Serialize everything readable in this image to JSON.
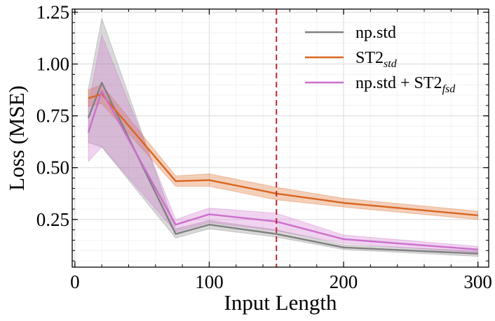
{
  "chart_data": {
    "type": "line",
    "title": "",
    "xlabel": "Input Length",
    "ylabel": "Loss (MSE)",
    "xlim": [
      -2,
      308
    ],
    "ylim": [
      0.02,
      1.265
    ],
    "xticks": [
      0,
      100,
      200,
      300
    ],
    "xtick_labels": [
      "0",
      "100",
      "200",
      "300"
    ],
    "yticks": [
      0.25,
      0.5,
      0.75,
      1.0,
      1.25
    ],
    "ytick_labels": [
      "0.25",
      "0.50",
      "0.75",
      "1.00",
      "1.25"
    ],
    "grid": true,
    "legend_position": "top-right",
    "vline": {
      "x": 150,
      "color": "#c0272d",
      "style": "dashed"
    },
    "x": [
      10,
      20,
      75,
      100,
      150,
      200,
      300
    ],
    "series": [
      {
        "name": "np.std",
        "base": "np.std",
        "subscript": "",
        "suffix": "",
        "color": "#808080",
        "values": [
          0.74,
          0.91,
          0.18,
          0.225,
          0.18,
          0.115,
          0.085
        ],
        "lower": [
          0.62,
          0.6,
          0.16,
          0.205,
          0.165,
          0.105,
          0.072
        ],
        "upper": [
          0.88,
          1.22,
          0.205,
          0.245,
          0.2,
          0.128,
          0.098
        ]
      },
      {
        "name": "ST2std",
        "base": "ST2",
        "subscript": "std",
        "suffix": "",
        "color": "#d9651f",
        "values": [
          0.835,
          0.855,
          0.435,
          0.44,
          0.375,
          0.33,
          0.27
        ],
        "lower": [
          0.795,
          0.81,
          0.41,
          0.41,
          0.345,
          0.31,
          0.25
        ],
        "upper": [
          0.875,
          0.9,
          0.46,
          0.47,
          0.405,
          0.352,
          0.29
        ]
      },
      {
        "name": "np.std + ST2fsd",
        "base": "np.std + ST2",
        "subscript": "fsd",
        "suffix": "",
        "color": "#cc6fcc",
        "values": [
          0.67,
          0.87,
          0.225,
          0.275,
          0.24,
          0.155,
          0.105
        ],
        "lower": [
          0.53,
          0.6,
          0.19,
          0.235,
          0.195,
          0.135,
          0.09
        ],
        "upper": [
          0.8,
          1.14,
          0.25,
          0.305,
          0.28,
          0.175,
          0.12
        ]
      }
    ]
  }
}
